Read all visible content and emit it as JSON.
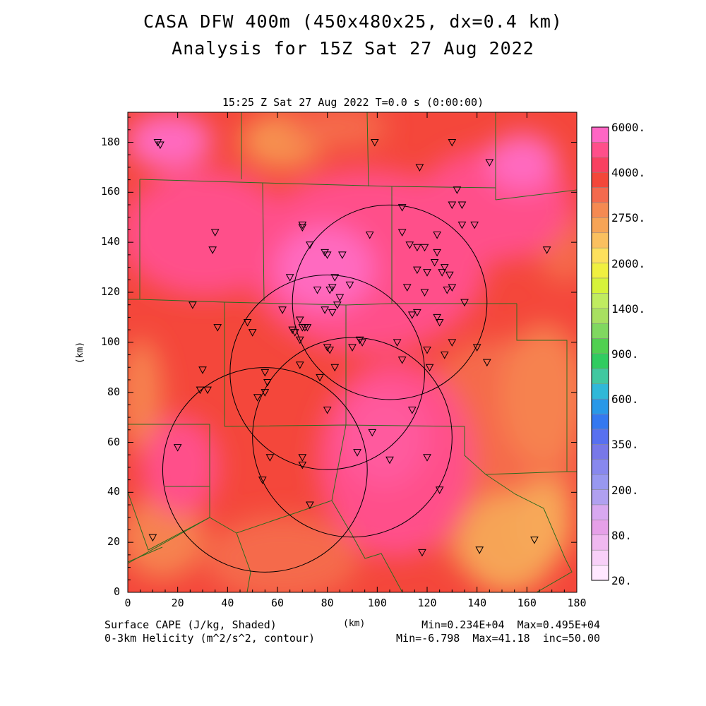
{
  "title": {
    "line1": "CASA DFW 400m (450x480x25, dx=0.4 km)",
    "line2": "Analysis for 15Z Sat 27 Aug 2022"
  },
  "subtitle": "15:25 Z Sat 27 Aug 2022    T=0.0 s (0:00:00)",
  "axes": {
    "x_label": "(km)",
    "y_label": "(km)",
    "x_ticks": [
      0,
      20,
      40,
      60,
      80,
      100,
      120,
      140,
      160,
      180
    ],
    "y_ticks": [
      0,
      20,
      40,
      60,
      80,
      100,
      120,
      140,
      160,
      180
    ],
    "x_range": [
      0,
      180
    ],
    "y_range": [
      0,
      192
    ]
  },
  "colorbar": {
    "labels": [
      "6000.",
      "4000.",
      "2750.",
      "2000.",
      "1400.",
      "900.",
      "600.",
      "350.",
      "200.",
      "80.",
      "20."
    ],
    "colors": [
      "#ff66c4",
      "#ff4f8a",
      "#f84060",
      "#f3473a",
      "#f46a4e",
      "#f58a52",
      "#f6a456",
      "#fac05f",
      "#fde05c",
      "#f0f040",
      "#d6f33a",
      "#c0ec60",
      "#a8e060",
      "#80d860",
      "#50d050",
      "#30cc60",
      "#40c8a0",
      "#30b8d8",
      "#2898e8",
      "#3478f0",
      "#5870f0",
      "#7878e8",
      "#8888ee",
      "#9898f0",
      "#b0a0f0",
      "#d8a8f0",
      "#e6a0e8",
      "#f0b8f0",
      "#f8d0f8",
      "#ffe8ff"
    ]
  },
  "footer": {
    "field1": "Surface CAPE (J/kg, Shaded)",
    "field2": "0-3km Helicity (m^2/s^2, contour)",
    "units": "(km)",
    "stats1": "Min=0.234E+04  Max=0.495E+04",
    "stats2": "Min=-6.798  Max=41.18  inc=50.00"
  },
  "radar_rings": [
    {
      "cx": 105,
      "cy": 116,
      "r": 39
    },
    {
      "cx": 80,
      "cy": 88,
      "r": 39
    },
    {
      "cx": 55,
      "cy": 49,
      "r": 41
    },
    {
      "cx": 90,
      "cy": 62,
      "r": 40
    }
  ],
  "stations": [
    [
      12,
      180
    ],
    [
      13,
      179
    ],
    [
      99,
      180
    ],
    [
      130,
      180
    ],
    [
      145,
      172
    ],
    [
      117,
      170
    ],
    [
      132,
      161
    ],
    [
      130,
      155
    ],
    [
      134,
      155
    ],
    [
      35,
      144
    ],
    [
      70,
      147
    ],
    [
      70,
      146
    ],
    [
      34,
      137
    ],
    [
      73,
      139
    ],
    [
      97,
      143
    ],
    [
      110,
      154
    ],
    [
      110,
      144
    ],
    [
      124,
      143
    ],
    [
      139,
      147
    ],
    [
      134,
      147
    ],
    [
      113,
      139
    ],
    [
      116,
      138
    ],
    [
      119,
      138
    ],
    [
      124,
      136
    ],
    [
      168,
      137
    ],
    [
      79,
      136
    ],
    [
      80,
      135
    ],
    [
      86,
      135
    ],
    [
      65,
      126
    ],
    [
      83,
      126
    ],
    [
      89,
      123
    ],
    [
      76,
      121
    ],
    [
      81,
      121
    ],
    [
      82,
      122
    ],
    [
      123,
      132
    ],
    [
      127,
      130
    ],
    [
      129,
      127
    ],
    [
      126,
      128
    ],
    [
      116,
      129
    ],
    [
      120,
      128
    ],
    [
      112,
      122
    ],
    [
      119,
      120
    ],
    [
      128,
      121
    ],
    [
      130,
      122
    ],
    [
      85,
      118
    ],
    [
      84,
      115
    ],
    [
      135,
      116
    ],
    [
      62,
      113
    ],
    [
      79,
      113
    ],
    [
      82,
      112
    ],
    [
      114,
      111
    ],
    [
      116,
      112
    ],
    [
      124,
      110
    ],
    [
      125,
      108
    ],
    [
      26,
      115
    ],
    [
      36,
      106
    ],
    [
      48,
      108
    ],
    [
      50,
      104
    ],
    [
      66,
      105
    ],
    [
      67,
      104
    ],
    [
      69,
      109
    ],
    [
      70,
      106
    ],
    [
      71,
      106
    ],
    [
      72,
      106
    ],
    [
      69,
      101
    ],
    [
      93,
      101
    ],
    [
      94,
      100
    ],
    [
      90,
      98
    ],
    [
      80,
      98
    ],
    [
      81,
      97
    ],
    [
      108,
      100
    ],
    [
      120,
      97
    ],
    [
      130,
      100
    ],
    [
      140,
      98
    ],
    [
      127,
      95
    ],
    [
      110,
      93
    ],
    [
      144,
      92
    ],
    [
      30,
      89
    ],
    [
      69,
      91
    ],
    [
      83,
      90
    ],
    [
      121,
      90
    ],
    [
      77,
      86
    ],
    [
      55,
      88
    ],
    [
      56,
      84
    ],
    [
      29,
      81
    ],
    [
      32,
      81
    ],
    [
      55,
      80
    ],
    [
      52,
      78
    ],
    [
      80,
      73
    ],
    [
      114,
      73
    ],
    [
      20,
      58
    ],
    [
      98,
      64
    ],
    [
      57,
      54
    ],
    [
      70,
      54
    ],
    [
      70,
      51
    ],
    [
      92,
      56
    ],
    [
      105,
      53
    ],
    [
      120,
      54
    ],
    [
      54,
      45
    ],
    [
      73,
      35
    ],
    [
      125,
      41
    ],
    [
      10,
      22
    ],
    [
      118,
      16
    ],
    [
      141,
      17
    ],
    [
      163,
      21
    ]
  ]
}
